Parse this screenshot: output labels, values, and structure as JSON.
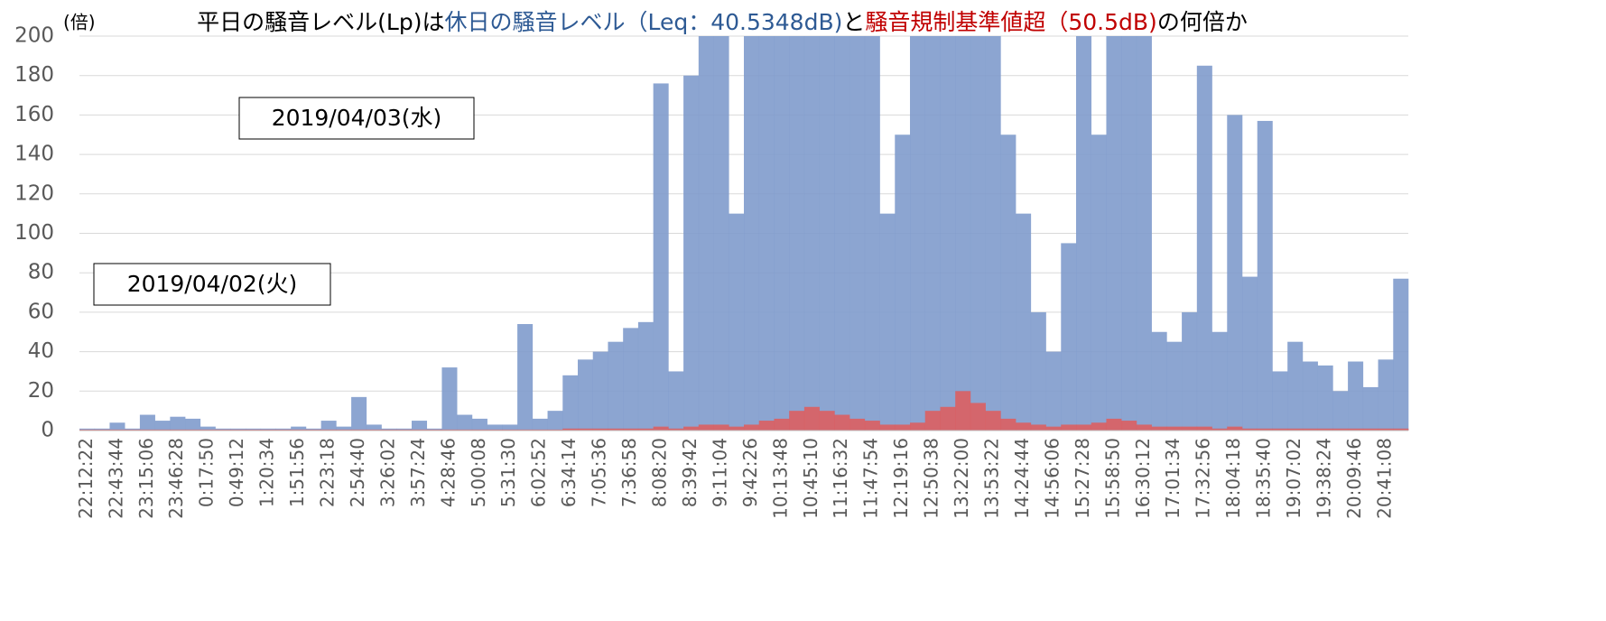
{
  "chart_data": {
    "type": "bar",
    "title_parts": [
      {
        "text": "平日の騒音レベル(Lp)は",
        "color": "#000000"
      },
      {
        "text": "休日の騒音レベル（Leq：40.5348dB)",
        "color": "#2e5a94"
      },
      {
        "text": "と",
        "color": "#000000"
      },
      {
        "text": "騒音規制基準値超（50.5dB)",
        "color": "#c00000"
      },
      {
        "text": "の何倍か",
        "color": "#000000"
      }
    ],
    "y_label": "(倍)",
    "annotations": [
      "2019/04/03(水)",
      "2019/04/02(火)"
    ],
    "categories": [
      "22:12:22",
      null,
      "22:43:44",
      null,
      "23:15:06",
      null,
      "23:46:28",
      null,
      "0:17:50",
      null,
      "0:49:12",
      null,
      "1:20:34",
      null,
      "1:51:56",
      null,
      "2:23:18",
      null,
      "2:54:40",
      null,
      "3:26:02",
      null,
      "3:57:24",
      null,
      "4:28:46",
      null,
      "5:00:08",
      null,
      "5:31:30",
      null,
      "6:02:52",
      null,
      "6:34:14",
      null,
      "7:05:36",
      null,
      "7:36:58",
      null,
      "8:08:20",
      null,
      "8:39:42",
      null,
      "9:11:04",
      null,
      "9:42:26",
      null,
      "10:13:48",
      null,
      "10:45:10",
      null,
      "11:16:32",
      null,
      "11:47:54",
      null,
      "12:19:16",
      null,
      "12:50:38",
      null,
      "13:22:00",
      null,
      "13:53:22",
      null,
      "14:24:44",
      null,
      "14:56:06",
      null,
      "15:27:28",
      null,
      "15:58:50",
      null,
      "16:30:12",
      null,
      "17:01:34",
      null,
      "17:32:56",
      null,
      "18:04:18",
      null,
      "18:35:40",
      null,
      "19:07:02",
      null,
      "19:38:24",
      null,
      "20:09:46",
      null,
      "20:41:08",
      null
    ],
    "series": [
      {
        "color": "#7f9bcc",
        "values": [
          1,
          1,
          4,
          1,
          8,
          5,
          7,
          6,
          2,
          1,
          1,
          1,
          1,
          1,
          2,
          1,
          5,
          2,
          17,
          3,
          1,
          1,
          5,
          1,
          32,
          8,
          6,
          3,
          3,
          54,
          6,
          10,
          28,
          36,
          40,
          45,
          52,
          55,
          176,
          30,
          180,
          200,
          200,
          110,
          200,
          200,
          200,
          200,
          200,
          200,
          200,
          200,
          200,
          110,
          150,
          200,
          200,
          200,
          200,
          200,
          200,
          150,
          110,
          60,
          40,
          95,
          200,
          150,
          200,
          200,
          200,
          50,
          45,
          60,
          185,
          50,
          160,
          78,
          157,
          30,
          45,
          35,
          33,
          20,
          35,
          22,
          36,
          77
        ]
      },
      {
        "color": "#e05a5a",
        "values": [
          0.5,
          0.5,
          0.5,
          0.5,
          0.5,
          0.5,
          0.5,
          0.5,
          0.5,
          0.5,
          0.5,
          0.5,
          0.5,
          0.5,
          0.5,
          0.5,
          0.5,
          0.5,
          0.5,
          0.5,
          0.5,
          0.5,
          0.5,
          0.5,
          0.5,
          0.5,
          0.5,
          0.5,
          0.5,
          0.5,
          0.5,
          0.5,
          1,
          1,
          1,
          1,
          1,
          1,
          2,
          1,
          2,
          3,
          3,
          2,
          3,
          5,
          6,
          10,
          12,
          10,
          8,
          6,
          5,
          3,
          3,
          4,
          10,
          12,
          20,
          14,
          10,
          6,
          4,
          3,
          2,
          3,
          3,
          4,
          6,
          5,
          3,
          2,
          2,
          2,
          2,
          1,
          2,
          1,
          1,
          1,
          1,
          1,
          1,
          1,
          1,
          1,
          1,
          1
        ]
      }
    ],
    "ylim": [
      0,
      200
    ],
    "yticks": [
      0,
      20,
      40,
      60,
      80,
      100,
      120,
      140,
      160,
      180,
      200
    ],
    "grid": true
  }
}
